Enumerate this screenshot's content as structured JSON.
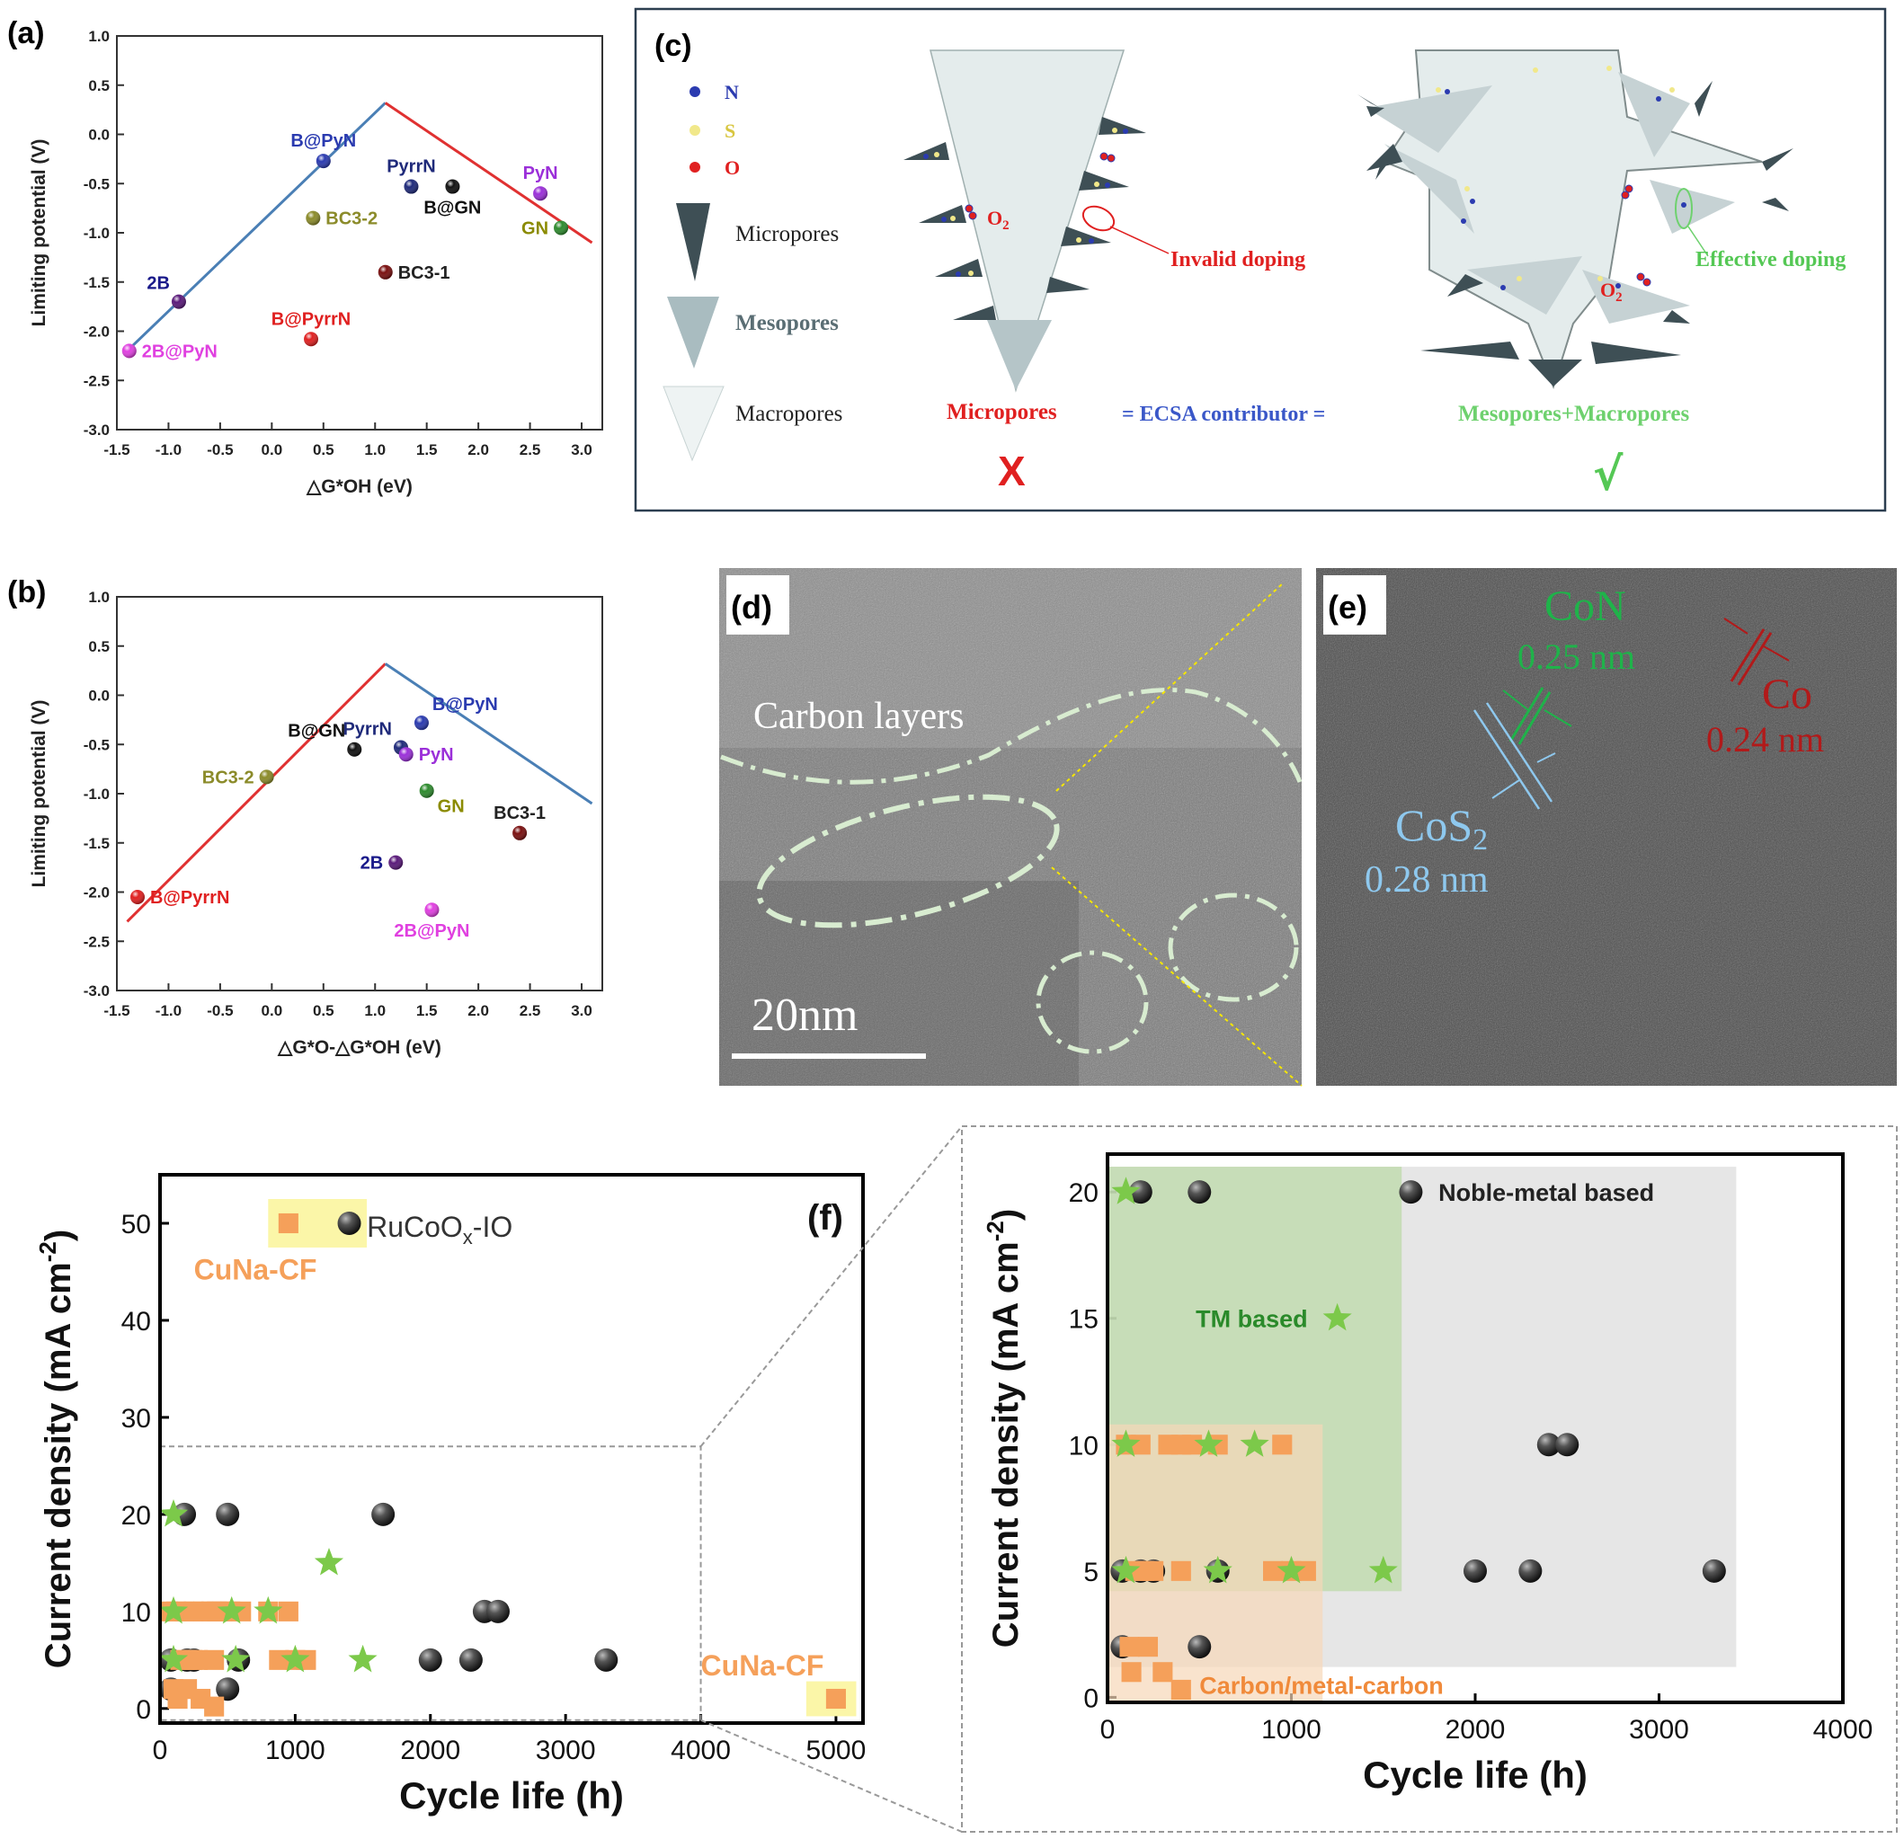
{
  "panels": {
    "a": "(a)",
    "b": "(b)",
    "c": "(c)",
    "d": "(d)",
    "e": "(e)",
    "f": "(f)"
  },
  "colors": {
    "blue_line": "#4a7fb5",
    "red_line": "#e03131",
    "orange": "#f5a05a",
    "green": "#7cc94a",
    "dark": "#333333",
    "tm_region": "#b7d7a0",
    "carbon_region": "#f5d5b8",
    "noble_region": "#dcdcdc"
  },
  "chart_data": [
    {
      "panel": "a",
      "type": "scatter",
      "xlabel": "△G*OH (eV)",
      "ylabel": "Limiting potential (V)",
      "xlim": [
        -1.5,
        3.2
      ],
      "ylim": [
        -3.0,
        1.0
      ],
      "xticks": [
        "-1.5",
        "-1.0",
        "-0.5",
        "0.0",
        "0.5",
        "1.0",
        "1.5",
        "2.0",
        "2.5",
        "3.0"
      ],
      "yticks": [
        "1.0",
        "0.5",
        "0.0",
        "-0.5",
        "-1.0",
        "-1.5",
        "-2.0",
        "-2.5",
        "-3.0"
      ],
      "lines": [
        {
          "color": "#4a7fb5",
          "points": [
            [
              -1.4,
              -2.2
            ],
            [
              1.1,
              0.32
            ]
          ]
        },
        {
          "color": "#e03131",
          "points": [
            [
              1.1,
              0.32
            ],
            [
              3.1,
              -1.1
            ]
          ]
        }
      ],
      "points": [
        {
          "label": "B@PyN",
          "x": 0.5,
          "y": -0.27,
          "color": "#2b3bb0",
          "text_color": "#2b3bb0",
          "anchor": "above"
        },
        {
          "label": "PyrrN",
          "x": 1.35,
          "y": -0.53,
          "color": "#1f2a7a",
          "text_color": "#1f2a7a",
          "anchor": "above"
        },
        {
          "label": "B@GN",
          "x": 1.75,
          "y": -0.53,
          "color": "#111111",
          "text_color": "#111111",
          "anchor": "below"
        },
        {
          "label": "PyN",
          "x": 2.6,
          "y": -0.6,
          "color": "#9b30d9",
          "text_color": "#9b30d9",
          "anchor": "above"
        },
        {
          "label": "GN",
          "x": 2.8,
          "y": -0.95,
          "color": "#2e8b2e",
          "text_color": "#8b8b00",
          "anchor": "left"
        },
        {
          "label": "BC3-2",
          "x": 0.4,
          "y": -0.85,
          "color": "#8b8b2a",
          "text_color": "#8b8b2a",
          "anchor": "right"
        },
        {
          "label": "BC3-1",
          "x": 1.1,
          "y": -1.4,
          "color": "#7a1010",
          "text_color": "#222222",
          "anchor": "right"
        },
        {
          "label": "2B",
          "x": -0.9,
          "y": -1.7,
          "color": "#5a1a7a",
          "text_color": "#1a1a8a",
          "anchor": "aboveleft"
        },
        {
          "label": "B@PyrrN",
          "x": 0.38,
          "y": -2.08,
          "color": "#e02020",
          "text_color": "#e02020",
          "anchor": "above"
        },
        {
          "label": "2B@PyN",
          "x": -1.38,
          "y": -2.2,
          "color": "#e040e0",
          "text_color": "#e040e0",
          "anchor": "right"
        }
      ]
    },
    {
      "panel": "b",
      "type": "scatter",
      "xlabel": "△G*O-△G*OH (eV)",
      "ylabel": "Limiting potential (V)",
      "xlim": [
        -1.5,
        3.2
      ],
      "ylim": [
        -3.0,
        1.0
      ],
      "xticks": [
        "-1.5",
        "-1.0",
        "-0.5",
        "0.0",
        "0.5",
        "1.0",
        "1.5",
        "2.0",
        "2.5",
        "3.0"
      ],
      "yticks": [
        "1.0",
        "0.5",
        "0.0",
        "-0.5",
        "-1.0",
        "-1.5",
        "-2.0",
        "-2.5",
        "-3.0"
      ],
      "lines": [
        {
          "color": "#e03131",
          "points": [
            [
              -1.4,
              -2.3
            ],
            [
              1.1,
              0.32
            ]
          ]
        },
        {
          "color": "#4a7fb5",
          "points": [
            [
              1.1,
              0.32
            ],
            [
              3.1,
              -1.1
            ]
          ]
        }
      ],
      "points": [
        {
          "label": "B@PyN",
          "x": 1.45,
          "y": -0.28,
          "color": "#2b3bb0",
          "text_color": "#2b3bb0",
          "anchor": "aboveright"
        },
        {
          "label": "PyrrN",
          "x": 1.25,
          "y": -0.53,
          "color": "#1f2a7a",
          "text_color": "#1f2a7a",
          "anchor": "aboveleft"
        },
        {
          "label": "B@GN",
          "x": 0.8,
          "y": -0.55,
          "color": "#111111",
          "text_color": "#111111",
          "anchor": "aboveleft"
        },
        {
          "label": "PyN",
          "x": 1.3,
          "y": -0.6,
          "color": "#9b30d9",
          "text_color": "#9b30d9",
          "anchor": "right"
        },
        {
          "label": "GN",
          "x": 1.5,
          "y": -0.97,
          "color": "#2e8b2e",
          "text_color": "#8b8b00",
          "anchor": "belowright"
        },
        {
          "label": "BC3-2",
          "x": -0.05,
          "y": -0.83,
          "color": "#8b8b2a",
          "text_color": "#8b8b2a",
          "anchor": "left"
        },
        {
          "label": "BC3-1",
          "x": 2.4,
          "y": -1.4,
          "color": "#7a1010",
          "text_color": "#222222",
          "anchor": "above"
        },
        {
          "label": "2B",
          "x": 1.2,
          "y": -1.7,
          "color": "#5a1a7a",
          "text_color": "#1a1a8a",
          "anchor": "left"
        },
        {
          "label": "B@PyrrN",
          "x": -1.3,
          "y": -2.05,
          "color": "#e02020",
          "text_color": "#e02020",
          "anchor": "right"
        },
        {
          "label": "2B@PyN",
          "x": 1.55,
          "y": -2.18,
          "color": "#e040e0",
          "text_color": "#e040e0",
          "anchor": "below"
        }
      ]
    },
    {
      "panel": "f",
      "type": "scatter",
      "xlabel": "Cycle life (h)",
      "ylabel": "Current density (mA cm-2)",
      "xlim": [
        0,
        5200
      ],
      "ylim": [
        -1.5,
        55
      ],
      "xticks": [
        0,
        1000,
        2000,
        3000,
        4000,
        5000
      ],
      "yticks": [
        0,
        10,
        20,
        30,
        40,
        50
      ],
      "series": [
        {
          "name": "Noble-metal based",
          "marker": "sphere",
          "points": [
            [
              80,
              5
            ],
            [
              200,
              5
            ],
            [
              250,
              5
            ],
            [
              580,
              5
            ],
            [
              2000,
              5
            ],
            [
              2300,
              5
            ],
            [
              3300,
              5
            ],
            [
              80,
              2
            ],
            [
              500,
              2
            ],
            [
              180,
              20
            ],
            [
              500,
              20
            ],
            [
              1650,
              20
            ],
            [
              2400,
              10
            ],
            [
              2500,
              10
            ],
            [
              1400,
              50
            ]
          ]
        },
        {
          "name": "Carbon/metal-carbon",
          "marker": "square",
          "points": [
            [
              60,
              10
            ],
            [
              120,
              10
            ],
            [
              180,
              10
            ],
            [
              250,
              10
            ],
            [
              320,
              10
            ],
            [
              380,
              10
            ],
            [
              420,
              10
            ],
            [
              460,
              10
            ],
            [
              520,
              10
            ],
            [
              600,
              10
            ],
            [
              800,
              10
            ],
            [
              950,
              10
            ],
            [
              150,
              5
            ],
            [
              200,
              5
            ],
            [
              240,
              5
            ],
            [
              280,
              5
            ],
            [
              400,
              5
            ],
            [
              880,
              5
            ],
            [
              1000,
              5
            ],
            [
              1080,
              5
            ],
            [
              100,
              2
            ],
            [
              200,
              2
            ],
            [
              300,
              1
            ],
            [
              130,
              1
            ],
            [
              400,
              0.2
            ],
            [
              950,
              50
            ],
            [
              5000,
              1
            ]
          ]
        },
        {
          "name": "TM based",
          "marker": "star",
          "points": [
            [
              100,
              20
            ],
            [
              1250,
              15
            ],
            [
              100,
              10
            ],
            [
              530,
              10
            ],
            [
              800,
              10
            ],
            [
              100,
              5
            ],
            [
              560,
              5
            ],
            [
              1000,
              5
            ],
            [
              1500,
              5
            ]
          ]
        }
      ],
      "annotations": [
        "RuCoOx-IO",
        "CuNa-CF",
        "CuNa-CF"
      ]
    },
    {
      "panel": "f-zoom",
      "type": "scatter",
      "xlabel": "Cycle life (h)",
      "ylabel": "Current density (mA cm-2)",
      "xlim": [
        0,
        4000
      ],
      "ylim": [
        -0.2,
        21.5
      ],
      "xticks": [
        0,
        1000,
        2000,
        3000,
        4000
      ],
      "yticks": [
        0,
        5,
        10,
        15,
        20
      ],
      "regions": [
        {
          "name": "Noble-metal based",
          "x": [
            0,
            3420
          ],
          "y": [
            1.2,
            21
          ]
        },
        {
          "name": "TM based",
          "x": [
            0,
            1600
          ],
          "y": [
            4.2,
            21
          ]
        },
        {
          "name": "Carbon/metal-carbon",
          "x": [
            0,
            1170
          ],
          "y": [
            -0.2,
            10.8
          ]
        }
      ],
      "series": [
        {
          "name": "Noble-metal based",
          "marker": "sphere",
          "points": [
            [
              80,
              5
            ],
            [
              180,
              5
            ],
            [
              250,
              5
            ],
            [
              600,
              5
            ],
            [
              2000,
              5
            ],
            [
              2300,
              5
            ],
            [
              3300,
              5
            ],
            [
              80,
              2
            ],
            [
              500,
              2
            ],
            [
              180,
              20
            ],
            [
              500,
              20
            ],
            [
              1650,
              20
            ],
            [
              2400,
              10
            ],
            [
              2500,
              10
            ]
          ]
        },
        {
          "name": "Carbon/metal-carbon",
          "marker": "square",
          "points": [
            [
              100,
              10
            ],
            [
              180,
              10
            ],
            [
              330,
              10
            ],
            [
              400,
              10
            ],
            [
              460,
              10
            ],
            [
              600,
              10
            ],
            [
              950,
              10
            ],
            [
              150,
              5
            ],
            [
              200,
              5
            ],
            [
              250,
              5
            ],
            [
              400,
              5
            ],
            [
              900,
              5
            ],
            [
              1000,
              5
            ],
            [
              1080,
              5
            ],
            [
              120,
              2
            ],
            [
              220,
              2
            ],
            [
              130,
              1
            ],
            [
              300,
              1
            ],
            [
              400,
              0.3
            ]
          ]
        },
        {
          "name": "TM based",
          "marker": "star",
          "points": [
            [
              100,
              20
            ],
            [
              1250,
              15
            ],
            [
              100,
              10
            ],
            [
              550,
              10
            ],
            [
              800,
              10
            ],
            [
              100,
              5
            ],
            [
              600,
              5
            ],
            [
              1000,
              5
            ],
            [
              1500,
              5
            ]
          ]
        }
      ]
    }
  ],
  "panel_c": {
    "legend": [
      "N",
      "S",
      "O"
    ],
    "pores": [
      "Micropores",
      "Mesopores",
      "Macropores"
    ],
    "o2": "O",
    "o2_sub": "2",
    "invalid_doping": "Invalid doping",
    "effective_doping": "Effective doping",
    "micropores_label": "Micropores",
    "ecsa": "= ECSA contributor =",
    "meso_macro": "Mesopores+Macropores",
    "cross": "X",
    "check": "√"
  },
  "panel_d": {
    "carbon_layers": "Carbon layers",
    "scale": "20nm"
  },
  "panel_e": {
    "con": "CoN",
    "con_d": "0.25 nm",
    "co": "Co",
    "co_d": "0.24 nm",
    "cos2": "CoS",
    "cos2_sub": "2",
    "cos2_d": "0.28 nm"
  },
  "panel_f_labels": {
    "rucoox": "RuCoO",
    "rucoox_sub": "x",
    "rucoox_rest": "-IO",
    "cuna1": "CuNa-CF",
    "cuna2": "CuNa-CF",
    "noble": "Noble-metal based",
    "tm": "TM based",
    "carbon": "Carbon/metal-carbon",
    "ylabel_main": "Current density (mA cm",
    "ylabel_sup": "-2",
    "ylabel_end": ")"
  }
}
